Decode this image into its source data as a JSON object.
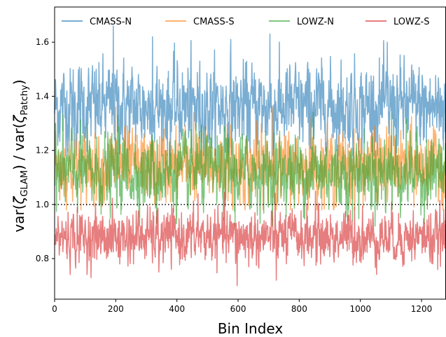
{
  "chart_data": {
    "type": "line",
    "xlabel": "Bin Index",
    "ylabel_prefix": "var(",
    "ylabel_glam_sub": "GLAM",
    "ylabel_middle": ") / var(",
    "ylabel_patchy_sub": "Patchy",
    "ylabel_suffix": ")",
    "zeta_symbol": "ζ",
    "xlim": [
      0,
      1280
    ],
    "ylim": [
      0.65,
      1.73
    ],
    "xticks": [
      0,
      200,
      400,
      600,
      800,
      1000,
      1200
    ],
    "yticks": [
      0.8,
      1.0,
      1.2,
      1.4,
      1.6
    ],
    "ytick_labels": [
      "0.8",
      "1.0",
      "1.2",
      "1.4",
      "1.6"
    ],
    "reference_line": {
      "y": 1.0,
      "style": "dotted",
      "color": "#000000"
    },
    "legend": {
      "placement": "top",
      "columns": 4
    },
    "n_points": 1280,
    "series": [
      {
        "name": "CMASS-N",
        "color": "#1f77b4",
        "mean": 1.36,
        "std": 0.075,
        "min": 1.18,
        "max": 1.66,
        "samples": [
          1.21,
          1.66,
          1.62,
          1.19,
          1.61,
          1.63,
          1.22,
          1.25,
          1.6,
          1.23
        ]
      },
      {
        "name": "CMASS-S",
        "color": "#ff7f0e",
        "mean": 1.14,
        "std": 0.06,
        "min": 0.98,
        "max": 1.37,
        "samples": [
          1.23,
          1.36,
          1.0,
          1.34,
          0.98,
          1.36,
          1.32,
          1.0,
          1.31,
          1.24
        ]
      },
      {
        "name": "LOWZ-N",
        "color": "#2ca02c",
        "mean": 1.12,
        "std": 0.065,
        "min": 0.92,
        "max": 1.36,
        "samples": [
          1.09,
          1.33,
          0.93,
          1.3,
          0.92,
          1.0,
          1.34,
          0.94,
          1.34,
          1.02
        ]
      },
      {
        "name": "LOWZ-S",
        "color": "#d62728",
        "mean": 0.88,
        "std": 0.045,
        "min": 0.7,
        "max": 1.05,
        "samples": [
          0.83,
          0.78,
          0.75,
          1.04,
          0.7,
          0.72,
          1.05,
          0.99,
          0.8,
          0.78
        ]
      }
    ]
  }
}
